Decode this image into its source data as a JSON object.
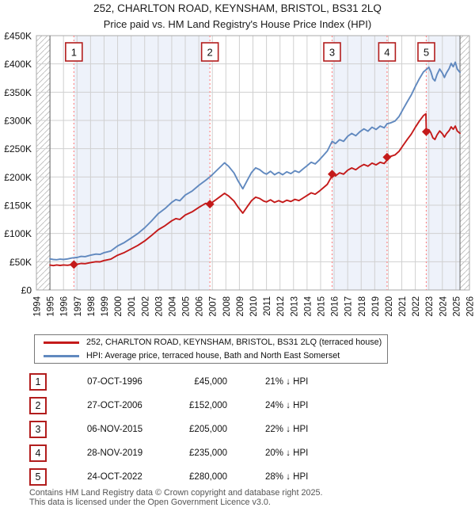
{
  "title": {
    "line1": "252, CHARLTON ROAD, KEYNSHAM, BRISTOL, BS31 2LQ",
    "line2": "Price paid vs. HM Land Registry's House Price Index (HPI)"
  },
  "legend": {
    "items": [
      {
        "label": "252, CHARLTON ROAD, KEYNSHAM, BRISTOL, BS31 2LQ (terraced house)",
        "color": "#c41a1a"
      },
      {
        "label": "HPI: Average price, terraced house, Bath and North East Somerset",
        "color": "#6189bf"
      }
    ]
  },
  "transactions": [
    {
      "num": "1",
      "date": "07-OCT-1996",
      "price": "£45,000",
      "hpi": "21% ↓ HPI"
    },
    {
      "num": "2",
      "date": "27-OCT-2006",
      "price": "£152,000",
      "hpi": "24% ↓ HPI"
    },
    {
      "num": "3",
      "date": "06-NOV-2015",
      "price": "£205,000",
      "hpi": "22% ↓ HPI"
    },
    {
      "num": "4",
      "date": "28-NOV-2019",
      "price": "£235,000",
      "hpi": "20% ↓ HPI"
    },
    {
      "num": "5",
      "date": "24-OCT-2022",
      "price": "£280,000",
      "hpi": "28% ↓ HPI"
    }
  ],
  "footer": {
    "line1": "Contains HM Land Registry data © Crown copyright and database right 2025.",
    "line2": "This data is licensed under the Open Government Licence v3.0."
  },
  "chart_data": {
    "type": "line",
    "title": "252, CHARLTON ROAD, KEYNSHAM, BRISTOL, BS31 2LQ — Price paid vs. HPI",
    "x_range": [
      1994,
      2026
    ],
    "y_range": [
      0,
      450000
    ],
    "grid": true,
    "legend_position": "below",
    "x_ticks": [
      1994,
      1995,
      1996,
      1997,
      1998,
      1999,
      2000,
      2001,
      2002,
      2003,
      2004,
      2005,
      2006,
      2007,
      2008,
      2009,
      2010,
      2011,
      2012,
      2013,
      2014,
      2015,
      2016,
      2017,
      2018,
      2019,
      2020,
      2021,
      2022,
      2023,
      2024,
      2025,
      2026
    ],
    "y_ticks": [
      [
        0,
        "£0"
      ],
      [
        50000,
        "£50K"
      ],
      [
        100000,
        "£100K"
      ],
      [
        150000,
        "£150K"
      ],
      [
        200000,
        "£200K"
      ],
      [
        250000,
        "£250K"
      ],
      [
        300000,
        "£300K"
      ],
      [
        350000,
        "£350K"
      ],
      [
        400000,
        "£400K"
      ],
      [
        450000,
        "£450K"
      ]
    ],
    "shaded_spans": [
      [
        1996.77,
        2006.82
      ],
      [
        2015.85,
        2019.91
      ],
      [
        2022.81,
        2025.3
      ]
    ],
    "hatch_spans": [
      [
        1994,
        1995
      ],
      [
        2025.3,
        2026
      ]
    ],
    "data_bounds": [
      1995,
      2025.3
    ],
    "event_lines": [
      {
        "n": "1",
        "x": 1996.77
      },
      {
        "n": "2",
        "x": 2006.82
      },
      {
        "n": "3",
        "x": 2015.85
      },
      {
        "n": "4",
        "x": 2019.91
      },
      {
        "n": "5",
        "x": 2022.81
      }
    ],
    "sale_markers": [
      [
        1996.77,
        45000
      ],
      [
        2006.82,
        152000
      ],
      [
        2015.85,
        205000
      ],
      [
        2019.91,
        235000
      ],
      [
        2022.81,
        280000
      ]
    ],
    "colors": {
      "property_line": "#c41a1a",
      "hpi_line": "#6189bf",
      "event_line": "#ff8a8a",
      "event_box_border": "#b21d1d",
      "shaded_region": "#eef2fa",
      "gridline": "#d0d0d0",
      "plot_border": "#aaaaaa",
      "data_edge": "#666666"
    },
    "series": [
      {
        "name": "HPI: Average price, terraced house, Bath and North East Somerset",
        "color": "#6189bf",
        "points": [
          [
            1995.0,
            55000
          ],
          [
            1995.25,
            54000
          ],
          [
            1995.5,
            53500
          ],
          [
            1995.75,
            54500
          ],
          [
            1996.0,
            54000
          ],
          [
            1996.3,
            55000
          ],
          [
            1996.6,
            56500
          ],
          [
            1996.77,
            57000
          ],
          [
            1997.0,
            57500
          ],
          [
            1997.3,
            59500
          ],
          [
            1997.6,
            59000
          ],
          [
            1998.0,
            61500
          ],
          [
            1998.4,
            63500
          ],
          [
            1998.7,
            63000
          ],
          [
            1999.0,
            66000
          ],
          [
            1999.5,
            69000
          ],
          [
            2000.0,
            78000
          ],
          [
            2000.5,
            84000
          ],
          [
            2001.0,
            92000
          ],
          [
            2001.5,
            100000
          ],
          [
            2002.0,
            110000
          ],
          [
            2002.5,
            122000
          ],
          [
            2003.0,
            135000
          ],
          [
            2003.5,
            144000
          ],
          [
            2004.0,
            155000
          ],
          [
            2004.3,
            160000
          ],
          [
            2004.6,
            158000
          ],
          [
            2005.0,
            168000
          ],
          [
            2005.5,
            175000
          ],
          [
            2006.0,
            185000
          ],
          [
            2006.5,
            194000
          ],
          [
            2006.82,
            200000
          ],
          [
            2007.0,
            204000
          ],
          [
            2007.3,
            211000
          ],
          [
            2007.6,
            218000
          ],
          [
            2007.9,
            225000
          ],
          [
            2008.2,
            219000
          ],
          [
            2008.6,
            207000
          ],
          [
            2008.9,
            193000
          ],
          [
            2009.25,
            179000
          ],
          [
            2009.6,
            195000
          ],
          [
            2009.9,
            208000
          ],
          [
            2010.2,
            216000
          ],
          [
            2010.5,
            213000
          ],
          [
            2010.8,
            207000
          ],
          [
            2011.0,
            205000
          ],
          [
            2011.3,
            210000
          ],
          [
            2011.6,
            204000
          ],
          [
            2011.9,
            208000
          ],
          [
            2012.2,
            204000
          ],
          [
            2012.5,
            209000
          ],
          [
            2012.8,
            206000
          ],
          [
            2013.1,
            211000
          ],
          [
            2013.4,
            208000
          ],
          [
            2013.7,
            214000
          ],
          [
            2014.0,
            220000
          ],
          [
            2014.3,
            226000
          ],
          [
            2014.6,
            223000
          ],
          [
            2014.9,
            230000
          ],
          [
            2015.2,
            238000
          ],
          [
            2015.5,
            246000
          ],
          [
            2015.85,
            263000
          ],
          [
            2016.1,
            259000
          ],
          [
            2016.4,
            266000
          ],
          [
            2016.7,
            263000
          ],
          [
            2017.0,
            272000
          ],
          [
            2017.3,
            277000
          ],
          [
            2017.6,
            273000
          ],
          [
            2017.9,
            280000
          ],
          [
            2018.2,
            285000
          ],
          [
            2018.5,
            281000
          ],
          [
            2018.8,
            288000
          ],
          [
            2019.1,
            284000
          ],
          [
            2019.4,
            290000
          ],
          [
            2019.7,
            287000
          ],
          [
            2019.91,
            294000
          ],
          [
            2020.2,
            296000
          ],
          [
            2020.5,
            299000
          ],
          [
            2020.8,
            307000
          ],
          [
            2021.1,
            320000
          ],
          [
            2021.4,
            333000
          ],
          [
            2021.7,
            345000
          ],
          [
            2022.0,
            360000
          ],
          [
            2022.3,
            374000
          ],
          [
            2022.6,
            386000
          ],
          [
            2022.81,
            390000
          ],
          [
            2023.0,
            394000
          ],
          [
            2023.15,
            386000
          ],
          [
            2023.3,
            374000
          ],
          [
            2023.45,
            370000
          ],
          [
            2023.6,
            381000
          ],
          [
            2023.8,
            391000
          ],
          [
            2024.0,
            384000
          ],
          [
            2024.15,
            376000
          ],
          [
            2024.3,
            384000
          ],
          [
            2024.5,
            392000
          ],
          [
            2024.65,
            401000
          ],
          [
            2024.8,
            395000
          ],
          [
            2024.95,
            403000
          ],
          [
            2025.1,
            391000
          ],
          [
            2025.3,
            385000
          ]
        ]
      },
      {
        "name": "252, CHARLTON ROAD, KEYNSHAM, BRISTOL, BS31 2LQ (terraced house)",
        "color": "#c41a1a",
        "points": [
          [
            1995.0,
            44000
          ],
          [
            1995.25,
            43200
          ],
          [
            1995.5,
            44300
          ],
          [
            1995.75,
            43500
          ],
          [
            1996.0,
            44300
          ],
          [
            1996.3,
            43800
          ],
          [
            1996.6,
            44800
          ],
          [
            1996.77,
            45000
          ],
          [
            1997.0,
            45400
          ],
          [
            1997.3,
            47000
          ],
          [
            1997.6,
            46600
          ],
          [
            1998.0,
            48500
          ],
          [
            1998.4,
            50100
          ],
          [
            1998.7,
            49700
          ],
          [
            1999.0,
            52100
          ],
          [
            1999.5,
            54500
          ],
          [
            2000.0,
            61600
          ],
          [
            2000.5,
            66300
          ],
          [
            2001.0,
            72600
          ],
          [
            2001.5,
            78900
          ],
          [
            2002.0,
            86800
          ],
          [
            2002.5,
            96300
          ],
          [
            2003.0,
            106600
          ],
          [
            2003.5,
            113700
          ],
          [
            2004.0,
            122400
          ],
          [
            2004.3,
            126300
          ],
          [
            2004.6,
            124700
          ],
          [
            2005.0,
            132600
          ],
          [
            2005.5,
            138200
          ],
          [
            2006.0,
            146100
          ],
          [
            2006.5,
            153200
          ],
          [
            2006.82,
            152000
          ],
          [
            2007.0,
            155000
          ],
          [
            2007.3,
            160400
          ],
          [
            2007.6,
            165700
          ],
          [
            2007.9,
            171000
          ],
          [
            2008.2,
            166400
          ],
          [
            2008.6,
            157300
          ],
          [
            2008.9,
            146700
          ],
          [
            2009.25,
            136000
          ],
          [
            2009.6,
            148200
          ],
          [
            2009.9,
            158100
          ],
          [
            2010.2,
            164200
          ],
          [
            2010.5,
            161900
          ],
          [
            2010.8,
            157300
          ],
          [
            2011.0,
            155800
          ],
          [
            2011.3,
            159600
          ],
          [
            2011.6,
            155000
          ],
          [
            2011.9,
            158100
          ],
          [
            2012.2,
            155000
          ],
          [
            2012.5,
            158800
          ],
          [
            2012.8,
            156600
          ],
          [
            2013.1,
            160400
          ],
          [
            2013.4,
            158100
          ],
          [
            2013.7,
            162600
          ],
          [
            2014.0,
            167200
          ],
          [
            2014.3,
            171800
          ],
          [
            2014.6,
            169500
          ],
          [
            2014.9,
            174800
          ],
          [
            2015.2,
            180900
          ],
          [
            2015.5,
            187000
          ],
          [
            2015.8,
            200000
          ],
          [
            2015.85,
            205000
          ],
          [
            2016.1,
            201900
          ],
          [
            2016.4,
            207300
          ],
          [
            2016.7,
            205000
          ],
          [
            2017.0,
            212000
          ],
          [
            2017.3,
            215900
          ],
          [
            2017.6,
            212800
          ],
          [
            2017.9,
            218200
          ],
          [
            2018.2,
            222100
          ],
          [
            2018.5,
            219000
          ],
          [
            2018.8,
            224500
          ],
          [
            2019.1,
            221400
          ],
          [
            2019.4,
            226000
          ],
          [
            2019.7,
            223700
          ],
          [
            2019.88,
            229100
          ],
          [
            2019.91,
            235000
          ],
          [
            2020.2,
            236600
          ],
          [
            2020.5,
            239000
          ],
          [
            2020.8,
            245400
          ],
          [
            2021.1,
            255800
          ],
          [
            2021.4,
            266200
          ],
          [
            2021.7,
            275800
          ],
          [
            2022.0,
            287800
          ],
          [
            2022.3,
            299000
          ],
          [
            2022.6,
            308600
          ],
          [
            2022.78,
            311800
          ],
          [
            2022.81,
            280000
          ],
          [
            2023.0,
            283600
          ],
          [
            2023.15,
            277800
          ],
          [
            2023.3,
            269200
          ],
          [
            2023.45,
            266300
          ],
          [
            2023.6,
            274200
          ],
          [
            2023.8,
            281400
          ],
          [
            2024.0,
            276400
          ],
          [
            2024.15,
            270600
          ],
          [
            2024.3,
            276400
          ],
          [
            2024.5,
            282100
          ],
          [
            2024.65,
            288600
          ],
          [
            2024.8,
            284300
          ],
          [
            2024.95,
            290000
          ],
          [
            2025.1,
            281400
          ],
          [
            2025.3,
            277100
          ]
        ]
      }
    ]
  }
}
